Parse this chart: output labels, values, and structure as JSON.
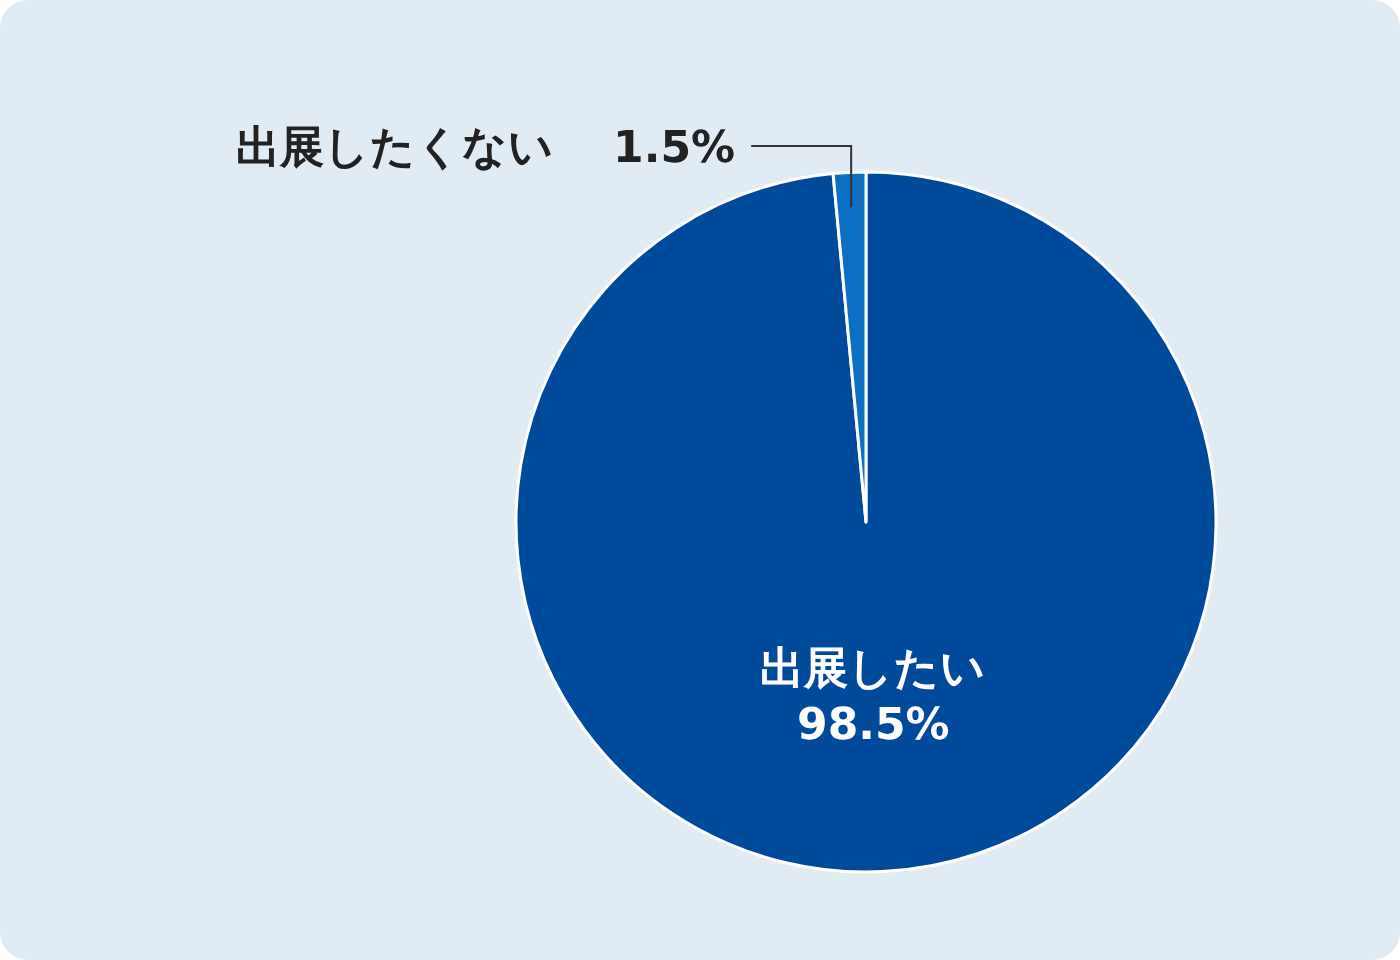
{
  "chart_data": {
    "type": "pie",
    "categories": [
      "出展したい",
      "出展したくない"
    ],
    "values": [
      98.5,
      1.5
    ],
    "colors": [
      "#004a9c",
      "#0b6fc4"
    ],
    "value_labels": [
      "98.5%",
      "1.5%"
    ]
  }
}
